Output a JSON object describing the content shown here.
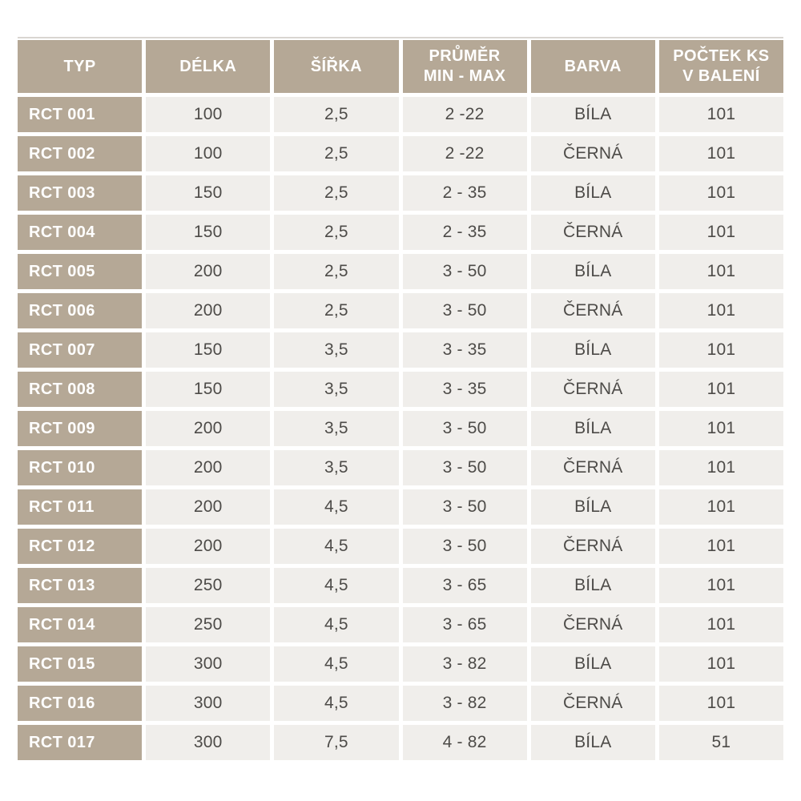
{
  "colors": {
    "header_bg": "#b5a896",
    "cell_bg": "#f0eeeb",
    "header_text": "#ffffff",
    "cell_text": "#4d4b48",
    "top_line": "#d9d6d1",
    "gutter": "#ffffff"
  },
  "table": {
    "columns": [
      "TYP",
      "DÉLKA",
      "ŠÍŘKA",
      "PRŮMĚR\nMIN - MAX",
      "BARVA",
      "POČTEK KS\nV BALENÍ"
    ],
    "rows": [
      [
        "RCT 001",
        "100",
        "2,5",
        "2 -22",
        "BÍLA",
        "101"
      ],
      [
        "RCT 002",
        "100",
        "2,5",
        "2 -22",
        "ČERNÁ",
        "101"
      ],
      [
        "RCT 003",
        "150",
        "2,5",
        "2 - 35",
        "BÍLA",
        "101"
      ],
      [
        "RCT 004",
        "150",
        "2,5",
        "2 - 35",
        "ČERNÁ",
        "101"
      ],
      [
        "RCT 005",
        "200",
        "2,5",
        "3 - 50",
        "BÍLA",
        "101"
      ],
      [
        "RCT 006",
        "200",
        "2,5",
        "3 - 50",
        "ČERNÁ",
        "101"
      ],
      [
        "RCT 007",
        "150",
        "3,5",
        "3 - 35",
        "BÍLA",
        "101"
      ],
      [
        "RCT 008",
        "150",
        "3,5",
        "3 - 35",
        "ČERNÁ",
        "101"
      ],
      [
        "RCT 009",
        "200",
        "3,5",
        "3 - 50",
        "BÍLA",
        "101"
      ],
      [
        "RCT 010",
        "200",
        "3,5",
        "3 - 50",
        "ČERNÁ",
        "101"
      ],
      [
        "RCT 011",
        "200",
        "4,5",
        "3 - 50",
        "BÍLA",
        "101"
      ],
      [
        "RCT 012",
        "200",
        "4,5",
        "3 - 50",
        "ČERNÁ",
        "101"
      ],
      [
        "RCT 013",
        "250",
        "4,5",
        "3 - 65",
        "BÍLA",
        "101"
      ],
      [
        "RCT 014",
        "250",
        "4,5",
        "3 - 65",
        "ČERNÁ",
        "101"
      ],
      [
        "RCT 015",
        "300",
        "4,5",
        "3 - 82",
        "BÍLA",
        "101"
      ],
      [
        "RCT 016",
        "300",
        "4,5",
        "3 - 82",
        "ČERNÁ",
        "101"
      ],
      [
        "RCT 017",
        "300",
        "7,5",
        "4 - 82",
        "BÍLA",
        "51"
      ]
    ]
  }
}
